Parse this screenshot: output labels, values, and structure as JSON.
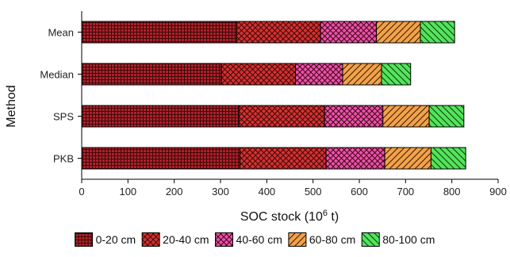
{
  "chart_data": {
    "type": "bar",
    "orientation": "horizontal",
    "stacked": true,
    "categories": [
      "Mean",
      "Median",
      "SPS",
      "PKB"
    ],
    "series": [
      {
        "name": "0-20 cm",
        "values": [
          335,
          302,
          340,
          342
        ],
        "color": "#b0202a",
        "pattern": "grid"
      },
      {
        "name": "20-40 cm",
        "values": [
          181,
          160,
          185,
          186
        ],
        "color": "#d83030",
        "pattern": "crosshatch"
      },
      {
        "name": "40-60 cm",
        "values": [
          121,
          102,
          126,
          127
        ],
        "color": "#ee4fb0",
        "pattern": "crosshatch"
      },
      {
        "name": "60-80 cm",
        "values": [
          95,
          84,
          100,
          100
        ],
        "color": "#f2a24a",
        "pattern": "forward-diagonal"
      },
      {
        "name": "80-100 cm",
        "values": [
          74,
          63,
          75,
          75
        ],
        "color": "#54e45c",
        "pattern": "back-diagonal"
      }
    ],
    "xlabel_text": "SOC stock (10",
    "xlabel_sup": "6",
    "xlabel_tail": " t)",
    "ylabel": "Method",
    "xlim": [
      0,
      900
    ],
    "xticks": [
      "0",
      "100",
      "200",
      "300",
      "400",
      "500",
      "600",
      "700",
      "800",
      "900"
    ],
    "grid": false,
    "legend_position": "bottom"
  }
}
